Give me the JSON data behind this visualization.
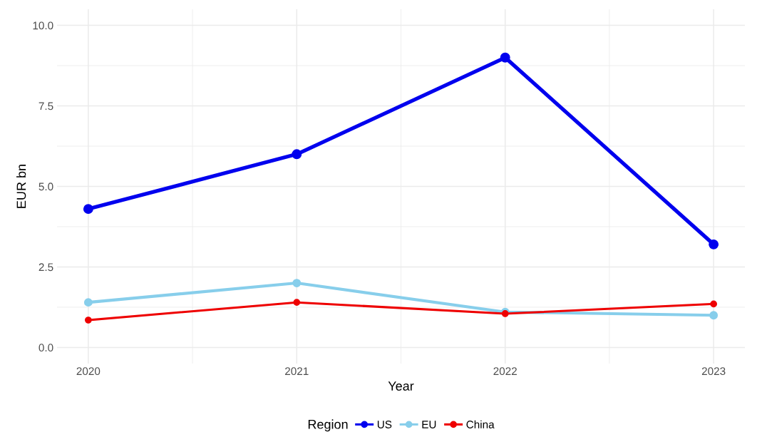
{
  "chart_data": {
    "type": "line",
    "xlabel": "Year",
    "ylabel": "EUR bn",
    "legend_title": "Region",
    "x": [
      2020,
      2021,
      2022,
      2023
    ],
    "series": [
      {
        "name": "US",
        "color": "#0000ee",
        "values": [
          4.3,
          6.0,
          9.0,
          3.2
        ]
      },
      {
        "name": "EU",
        "color": "#87ceeb",
        "values": [
          1.4,
          2.0,
          1.1,
          1.0
        ]
      },
      {
        "name": "China",
        "color": "#ee0000",
        "values": [
          0.85,
          1.4,
          1.05,
          1.35
        ]
      }
    ],
    "xlim": [
      2019.85,
      2023.15
    ],
    "ylim": [
      -0.5,
      10.5
    ],
    "xticks": [
      2020,
      {
        "value": 2020.5,
        "label": null
      },
      2021,
      {
        "value": 2021.5,
        "label": null
      },
      2022,
      {
        "value": 2022.5,
        "label": null
      },
      2023
    ],
    "yticks": [
      "0.0",
      {
        "value": 1.25,
        "label": null
      },
      {
        "value": 2.5,
        "label": "2.5"
      },
      {
        "value": 3.75,
        "label": null
      },
      {
        "value": 5,
        "label": "5.0"
      },
      {
        "value": 6.25,
        "label": null
      },
      {
        "value": 7.5,
        "label": "7.5"
      },
      {
        "value": 8.75,
        "label": null
      },
      {
        "value": 10,
        "label": "10.0"
      }
    ],
    "grid": true,
    "legend": "bottom",
    "marker": "circle",
    "line_style": "solid"
  }
}
